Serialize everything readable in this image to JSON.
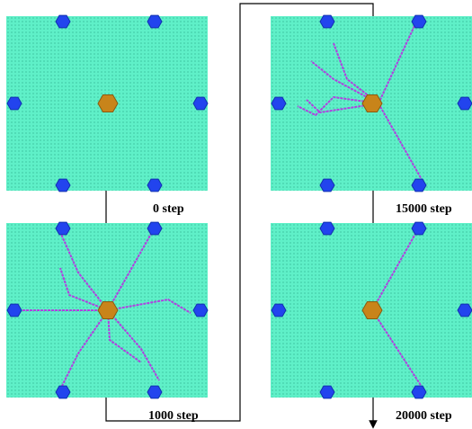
{
  "panels": [
    {
      "label": "0 step"
    },
    {
      "label": "15000 step"
    },
    {
      "label": "1000 step"
    },
    {
      "label": "20000 step"
    }
  ]
}
